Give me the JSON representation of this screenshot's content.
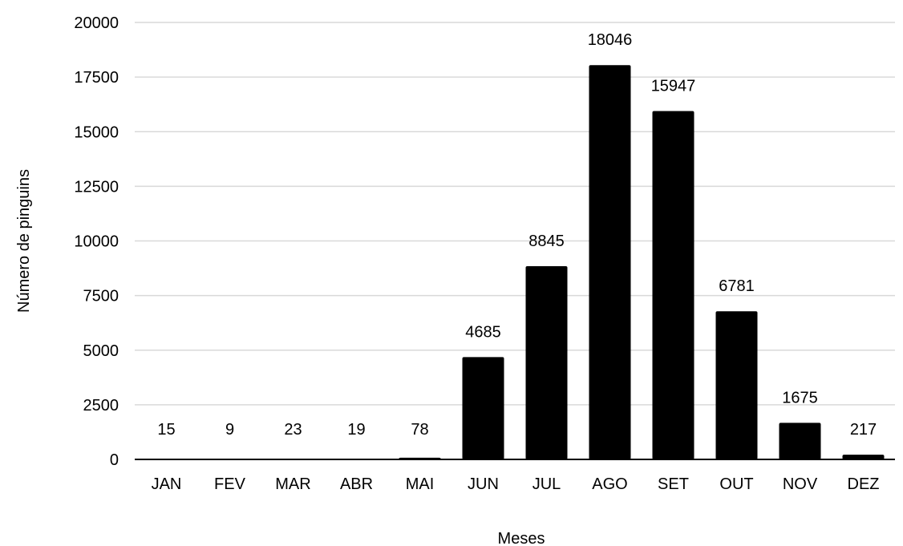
{
  "chart_data": {
    "type": "bar",
    "title": "",
    "xlabel": "Meses",
    "ylabel": "Número de pinguins",
    "categories": [
      "JAN",
      "FEV",
      "MAR",
      "ABR",
      "MAI",
      "JUN",
      "JUL",
      "AGO",
      "SET",
      "OUT",
      "NOV",
      "DEZ"
    ],
    "values": [
      15,
      9,
      23,
      19,
      78,
      4685,
      8845,
      18046,
      15947,
      6781,
      1675,
      217
    ],
    "ylim": [
      0,
      20000
    ],
    "yticks": [
      0,
      2500,
      5000,
      7500,
      10000,
      12500,
      15000,
      17500,
      20000
    ],
    "grid": true,
    "legend": "none",
    "bar_color": "#000000"
  }
}
